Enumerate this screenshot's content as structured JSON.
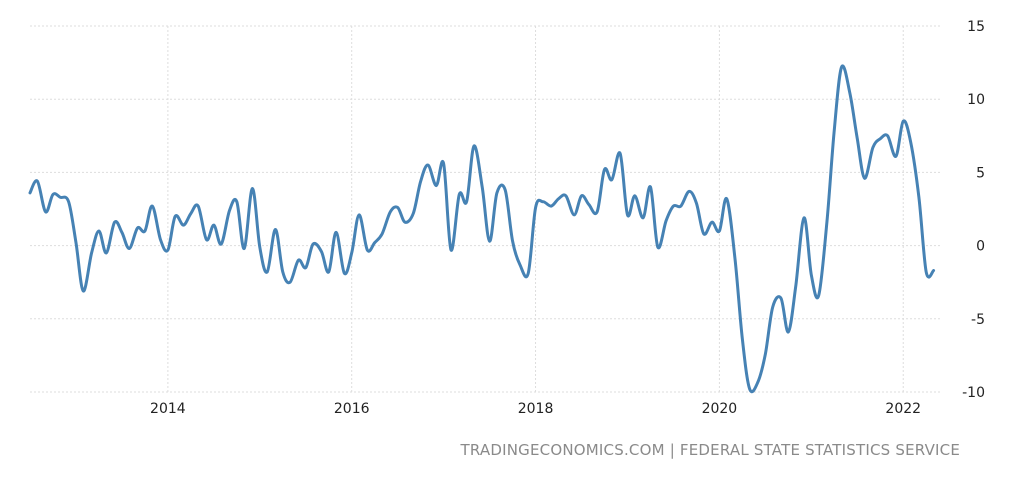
{
  "source_text": "TRADINGECONOMICS.COM | FEDERAL STATE STATISTICS SERVICE",
  "colors": {
    "line": "#4682b4",
    "grid": "#dddddd",
    "axis_text": "#222222",
    "source": "#8a8a8a"
  },
  "chart_data": {
    "type": "line",
    "title": "",
    "xlabel": "",
    "ylabel": "",
    "xlim": [
      2012.5,
      2022.4
    ],
    "ylim": [
      -10,
      15
    ],
    "x_ticks": [
      2014,
      2016,
      2018,
      2020,
      2022
    ],
    "y_ticks": [
      15,
      10,
      5,
      0,
      -5,
      -10
    ],
    "y_axis_side": "right",
    "grid": true,
    "series": [
      {
        "values": [
          [
            2012.5,
            3.6
          ],
          [
            2012.58,
            4.4
          ],
          [
            2012.67,
            2.3
          ],
          [
            2012.75,
            3.5
          ],
          [
            2012.83,
            3.3
          ],
          [
            2012.92,
            3.0
          ],
          [
            2013.0,
            0.2
          ],
          [
            2013.08,
            -3.1
          ],
          [
            2013.17,
            -0.5
          ],
          [
            2013.25,
            1.0
          ],
          [
            2013.33,
            -0.5
          ],
          [
            2013.42,
            1.6
          ],
          [
            2013.5,
            0.9
          ],
          [
            2013.58,
            -0.2
          ],
          [
            2013.67,
            1.2
          ],
          [
            2013.75,
            1.0
          ],
          [
            2013.83,
            2.7
          ],
          [
            2013.92,
            0.4
          ],
          [
            2014.0,
            -0.3
          ],
          [
            2014.08,
            2.0
          ],
          [
            2014.17,
            1.4
          ],
          [
            2014.25,
            2.2
          ],
          [
            2014.33,
            2.7
          ],
          [
            2014.42,
            0.4
          ],
          [
            2014.5,
            1.4
          ],
          [
            2014.58,
            0.1
          ],
          [
            2014.67,
            2.4
          ],
          [
            2014.75,
            3.0
          ],
          [
            2014.83,
            -0.2
          ],
          [
            2014.92,
            3.9
          ],
          [
            2015.0,
            -0.1
          ],
          [
            2015.08,
            -1.8
          ],
          [
            2015.17,
            1.1
          ],
          [
            2015.25,
            -1.8
          ],
          [
            2015.33,
            -2.5
          ],
          [
            2015.42,
            -1.0
          ],
          [
            2015.5,
            -1.5
          ],
          [
            2015.58,
            0.1
          ],
          [
            2015.67,
            -0.4
          ],
          [
            2015.75,
            -1.8
          ],
          [
            2015.83,
            0.9
          ],
          [
            2015.92,
            -1.9
          ],
          [
            2016.0,
            -0.5
          ],
          [
            2016.08,
            2.1
          ],
          [
            2016.17,
            -0.3
          ],
          [
            2016.25,
            0.2
          ],
          [
            2016.33,
            0.8
          ],
          [
            2016.42,
            2.3
          ],
          [
            2016.5,
            2.6
          ],
          [
            2016.58,
            1.6
          ],
          [
            2016.67,
            2.2
          ],
          [
            2016.75,
            4.4
          ],
          [
            2016.83,
            5.5
          ],
          [
            2016.92,
            4.1
          ],
          [
            2017.0,
            5.6
          ],
          [
            2017.08,
            -0.3
          ],
          [
            2017.17,
            3.5
          ],
          [
            2017.25,
            3.0
          ],
          [
            2017.33,
            6.8
          ],
          [
            2017.42,
            4.0
          ],
          [
            2017.5,
            0.3
          ],
          [
            2017.58,
            3.6
          ],
          [
            2017.67,
            3.8
          ],
          [
            2017.75,
            0.3
          ],
          [
            2017.83,
            -1.3
          ],
          [
            2017.92,
            -1.9
          ],
          [
            2018.0,
            2.6
          ],
          [
            2018.08,
            3.0
          ],
          [
            2018.17,
            2.7
          ],
          [
            2018.25,
            3.2
          ],
          [
            2018.33,
            3.4
          ],
          [
            2018.42,
            2.1
          ],
          [
            2018.5,
            3.4
          ],
          [
            2018.58,
            2.8
          ],
          [
            2018.67,
            2.3
          ],
          [
            2018.75,
            5.2
          ],
          [
            2018.83,
            4.5
          ],
          [
            2018.92,
            6.3
          ],
          [
            2019.0,
            2.1
          ],
          [
            2019.08,
            3.4
          ],
          [
            2019.17,
            1.9
          ],
          [
            2019.25,
            4.0
          ],
          [
            2019.33,
            -0.1
          ],
          [
            2019.42,
            1.7
          ],
          [
            2019.5,
            2.7
          ],
          [
            2019.58,
            2.7
          ],
          [
            2019.67,
            3.7
          ],
          [
            2019.75,
            2.9
          ],
          [
            2019.83,
            0.8
          ],
          [
            2019.92,
            1.6
          ],
          [
            2020.0,
            1.0
          ],
          [
            2020.08,
            3.2
          ],
          [
            2020.17,
            -0.9
          ],
          [
            2020.25,
            -6.4
          ],
          [
            2020.33,
            -9.8
          ],
          [
            2020.42,
            -9.3
          ],
          [
            2020.5,
            -7.4
          ],
          [
            2020.58,
            -4.2
          ],
          [
            2020.67,
            -3.6
          ],
          [
            2020.75,
            -5.9
          ],
          [
            2020.83,
            -2.8
          ],
          [
            2020.92,
            1.9
          ],
          [
            2021.0,
            -2.0
          ],
          [
            2021.08,
            -3.4
          ],
          [
            2021.17,
            1.6
          ],
          [
            2021.25,
            7.9
          ],
          [
            2021.33,
            12.2
          ],
          [
            2021.42,
            10.4
          ],
          [
            2021.5,
            7.3
          ],
          [
            2021.58,
            4.6
          ],
          [
            2021.67,
            6.7
          ],
          [
            2021.75,
            7.3
          ],
          [
            2021.83,
            7.5
          ],
          [
            2021.92,
            6.1
          ],
          [
            2022.0,
            8.5
          ],
          [
            2022.08,
            7.1
          ],
          [
            2022.17,
            3.3
          ],
          [
            2022.25,
            -1.8
          ],
          [
            2022.33,
            -1.7
          ]
        ]
      }
    ]
  }
}
